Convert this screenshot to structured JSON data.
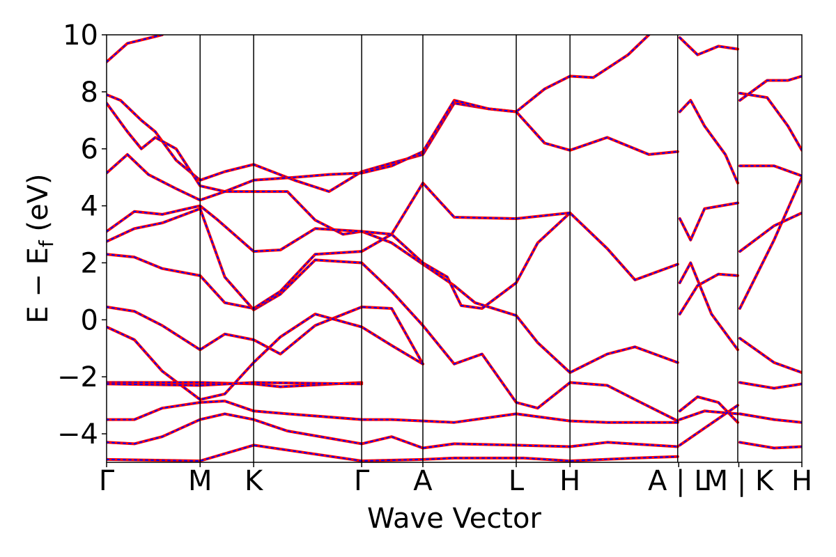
{
  "chart_data": {
    "type": "line",
    "xlabel": "Wave Vector",
    "ylabel": {
      "main": "E − E",
      "subscript": "f",
      "unit": " (eV)"
    },
    "ylim": [
      -5,
      10
    ],
    "yticks": [
      -4,
      -2,
      0,
      2,
      4,
      6,
      8,
      10
    ],
    "ytick_labels": [
      "−4",
      "−2",
      "0",
      "2",
      "4",
      "6",
      "8",
      "10"
    ],
    "x_range": [
      0,
      1
    ],
    "kpoints": [
      {
        "label": "Γ",
        "x": 0.0
      },
      {
        "label": "M",
        "x": 0.1345
      },
      {
        "label": "K",
        "x": 0.2115
      },
      {
        "label": "Γ",
        "x": 0.3669
      },
      {
        "label": "A",
        "x": 0.4549
      },
      {
        "label": "L",
        "x": 0.5892
      },
      {
        "label": "H",
        "x": 0.6665
      },
      {
        "label": "A",
        "x": 0.8214
      },
      {
        "label": "L",
        "x": 0.8244
      },
      {
        "label": "M",
        "x": 0.9078
      },
      {
        "label": "K",
        "x": 0.9108
      },
      {
        "label": "H",
        "x": 1.0
      }
    ],
    "bottom_labels": [
      "Γ",
      "M",
      "K",
      "Γ",
      "A",
      "L",
      "H",
      "A | L",
      "M | K",
      "H"
    ],
    "vlines": [
      0.1345,
      0.2115,
      0.3669,
      0.4549,
      0.5892,
      0.6665,
      0.8214,
      0.9078
    ],
    "grid": false,
    "legend": "none",
    "series_style": [
      {
        "color": "#ff0000",
        "style": "solid"
      },
      {
        "color": "#0000ff",
        "style": "dotted"
      }
    ],
    "bands": [
      [
        [
          0,
          9.05
        ],
        [
          0.03,
          9.7
        ],
        [
          0.08,
          10.0
        ]
      ],
      [
        [
          0,
          7.9
        ],
        [
          0.02,
          7.7
        ],
        [
          0.05,
          7.0
        ],
        [
          0.07,
          6.6
        ],
        [
          0.1,
          5.6
        ],
        [
          0.1345,
          4.9
        ],
        [
          0.17,
          5.2
        ],
        [
          0.2115,
          5.45
        ],
        [
          0.27,
          4.9
        ],
        [
          0.32,
          4.5
        ],
        [
          0.3669,
          5.2
        ],
        [
          0.41,
          5.5
        ],
        [
          0.4549,
          5.8
        ],
        [
          0.5,
          7.6
        ],
        [
          0.55,
          7.4
        ],
        [
          0.5892,
          7.3
        ],
        [
          0.63,
          8.1
        ],
        [
          0.6665,
          8.55
        ],
        [
          0.7,
          8.5
        ],
        [
          0.75,
          9.3
        ],
        [
          0.78,
          10.0
        ]
      ],
      [
        [
          0,
          7.6
        ],
        [
          0.03,
          6.6
        ],
        [
          0.05,
          6.0
        ],
        [
          0.07,
          6.4
        ],
        [
          0.1,
          6.0
        ],
        [
          0.1345,
          4.7
        ],
        [
          0.17,
          4.5
        ],
        [
          0.2115,
          4.9
        ],
        [
          0.27,
          5.0
        ],
        [
          0.32,
          5.1
        ],
        [
          0.3669,
          5.15
        ],
        [
          0.41,
          5.4
        ],
        [
          0.4549,
          5.9
        ],
        [
          0.5,
          7.7
        ],
        [
          0.55,
          7.4
        ],
        [
          0.5892,
          7.3
        ],
        [
          0.63,
          6.2
        ],
        [
          0.6665,
          5.95
        ],
        [
          0.72,
          6.4
        ],
        [
          0.78,
          5.8
        ],
        [
          0.8214,
          5.9
        ]
      ],
      [
        [
          0,
          5.15
        ],
        [
          0.03,
          5.8
        ],
        [
          0.06,
          5.1
        ],
        [
          0.1,
          4.6
        ],
        [
          0.1345,
          4.2
        ],
        [
          0.17,
          4.5
        ],
        [
          0.2115,
          4.5
        ],
        [
          0.26,
          4.5
        ],
        [
          0.3,
          3.5
        ],
        [
          0.34,
          3.0
        ],
        [
          0.3669,
          3.1
        ],
        [
          0.41,
          2.7
        ],
        [
          0.4549,
          1.95
        ],
        [
          0.5,
          1.2
        ],
        [
          0.53,
          0.6
        ],
        [
          0.5892,
          0.15
        ],
        [
          0.62,
          -0.8
        ],
        [
          0.6665,
          -1.85
        ],
        [
          0.72,
          -1.2
        ],
        [
          0.76,
          -0.95
        ],
        [
          0.8214,
          -1.5
        ]
      ],
      [
        [
          0,
          3.1
        ],
        [
          0.04,
          3.8
        ],
        [
          0.08,
          3.7
        ],
        [
          0.1345,
          4.0
        ],
        [
          0.16,
          3.5
        ],
        [
          0.2115,
          2.4
        ],
        [
          0.25,
          2.45
        ],
        [
          0.3,
          3.2
        ],
        [
          0.3669,
          3.1
        ],
        [
          0.41,
          3.0
        ],
        [
          0.4549,
          2.0
        ],
        [
          0.49,
          1.5
        ],
        [
          0.51,
          0.5
        ],
        [
          0.54,
          0.4
        ],
        [
          0.5892,
          1.3
        ],
        [
          0.62,
          2.7
        ],
        [
          0.6665,
          3.75
        ],
        [
          0.72,
          2.5
        ],
        [
          0.76,
          1.4
        ],
        [
          0.8214,
          1.95
        ]
      ],
      [
        [
          0,
          2.75
        ],
        [
          0.04,
          3.2
        ],
        [
          0.08,
          3.4
        ],
        [
          0.1345,
          3.9
        ],
        [
          0.17,
          1.5
        ],
        [
          0.2115,
          0.35
        ],
        [
          0.25,
          0.9
        ],
        [
          0.3,
          2.1
        ],
        [
          0.3669,
          2.0
        ],
        [
          0.41,
          1.0
        ],
        [
          0.4549,
          -0.2
        ],
        [
          0.5,
          -1.55
        ],
        [
          0.54,
          -1.2
        ],
        [
          0.5892,
          -2.9
        ],
        [
          0.62,
          -3.1
        ],
        [
          0.6665,
          -2.2
        ],
        [
          0.72,
          -2.3
        ],
        [
          0.76,
          -2.8
        ],
        [
          0.8214,
          -3.55
        ]
      ],
      [
        [
          0,
          2.3
        ],
        [
          0.04,
          2.2
        ],
        [
          0.08,
          1.8
        ],
        [
          0.1345,
          1.55
        ],
        [
          0.17,
          0.6
        ],
        [
          0.2115,
          0.4
        ],
        [
          0.25,
          1.0
        ],
        [
          0.3,
          2.3
        ],
        [
          0.3669,
          2.4
        ],
        [
          0.41,
          3.0
        ],
        [
          0.4549,
          4.8
        ],
        [
          0.5,
          3.6
        ],
        [
          0.5892,
          3.55
        ],
        [
          0.6665,
          3.75
        ]
      ],
      [
        [
          0,
          0.45
        ],
        [
          0.04,
          0.3
        ],
        [
          0.08,
          -0.2
        ],
        [
          0.1345,
          -1.05
        ],
        [
          0.17,
          -0.5
        ],
        [
          0.2115,
          -0.7
        ],
        [
          0.25,
          -1.2
        ],
        [
          0.3,
          -0.2
        ],
        [
          0.3669,
          0.45
        ],
        [
          0.41,
          0.4
        ],
        [
          0.4549,
          -1.55
        ]
      ],
      [
        [
          0,
          -0.25
        ],
        [
          0.04,
          -0.7
        ],
        [
          0.08,
          -1.8
        ],
        [
          0.1345,
          -2.8
        ],
        [
          0.17,
          -2.6
        ],
        [
          0.2115,
          -1.5
        ],
        [
          0.25,
          -0.6
        ],
        [
          0.3,
          0.2
        ],
        [
          0.3669,
          -0.25
        ],
        [
          0.41,
          -0.9
        ],
        [
          0.4549,
          -1.55
        ]
      ],
      [
        [
          0,
          -2.2
        ],
        [
          0.1345,
          -2.2
        ],
        [
          0.2115,
          -2.25
        ],
        [
          0.25,
          -2.35
        ],
        [
          0.3669,
          -2.2
        ]
      ],
      [
        [
          0,
          -2.25
        ],
        [
          0.1345,
          -2.3
        ],
        [
          0.2115,
          -2.2
        ],
        [
          0.3669,
          -2.25
        ]
      ],
      [
        [
          0,
          -3.5
        ],
        [
          0.04,
          -3.5
        ],
        [
          0.08,
          -3.1
        ],
        [
          0.1345,
          -2.9
        ],
        [
          0.17,
          -2.85
        ],
        [
          0.2115,
          -3.2
        ],
        [
          0.26,
          -3.3
        ],
        [
          0.3669,
          -3.5
        ],
        [
          0.41,
          -3.5
        ],
        [
          0.4549,
          -3.55
        ],
        [
          0.5,
          -3.6
        ],
        [
          0.5892,
          -3.3
        ],
        [
          0.6665,
          -3.55
        ],
        [
          0.72,
          -3.6
        ],
        [
          0.8214,
          -3.6
        ]
      ],
      [
        [
          0,
          -4.3
        ],
        [
          0.04,
          -4.35
        ],
        [
          0.08,
          -4.1
        ],
        [
          0.1345,
          -3.5
        ],
        [
          0.17,
          -3.3
        ],
        [
          0.2115,
          -3.5
        ],
        [
          0.26,
          -3.9
        ],
        [
          0.3669,
          -4.35
        ],
        [
          0.41,
          -4.1
        ],
        [
          0.4549,
          -4.5
        ],
        [
          0.5,
          -4.35
        ],
        [
          0.5892,
          -4.4
        ],
        [
          0.6665,
          -4.45
        ],
        [
          0.72,
          -4.3
        ],
        [
          0.8214,
          -4.45
        ]
      ],
      [
        [
          0,
          -4.9
        ],
        [
          0.1345,
          -4.95
        ],
        [
          0.2115,
          -4.4
        ],
        [
          0.3669,
          -4.95
        ],
        [
          0.4549,
          -4.9
        ],
        [
          0.5,
          -4.85
        ],
        [
          0.6,
          -4.85
        ],
        [
          0.6665,
          -4.95
        ],
        [
          0.76,
          -4.85
        ],
        [
          0.8214,
          -4.8
        ]
      ],
      [
        [
          0.8244,
          9.9
        ],
        [
          0.85,
          9.3
        ],
        [
          0.88,
          9.6
        ],
        [
          0.9078,
          9.5
        ]
      ],
      [
        [
          0.8244,
          7.3
        ],
        [
          0.84,
          7.7
        ],
        [
          0.86,
          6.8
        ],
        [
          0.89,
          5.8
        ],
        [
          0.9078,
          4.8
        ]
      ],
      [
        [
          0.8244,
          3.55
        ],
        [
          0.84,
          2.8
        ],
        [
          0.86,
          3.9
        ],
        [
          0.9078,
          4.1
        ]
      ],
      [
        [
          0.8244,
          1.3
        ],
        [
          0.84,
          2.0
        ],
        [
          0.87,
          0.2
        ],
        [
          0.9078,
          -1.05
        ]
      ],
      [
        [
          0.8244,
          0.2
        ],
        [
          0.85,
          1.2
        ],
        [
          0.88,
          1.6
        ],
        [
          0.9078,
          1.55
        ]
      ],
      [
        [
          0.8244,
          -3.2
        ],
        [
          0.85,
          -2.7
        ],
        [
          0.88,
          -2.9
        ],
        [
          0.9078,
          -3.6
        ]
      ],
      [
        [
          0.8244,
          -3.5
        ],
        [
          0.86,
          -3.2
        ],
        [
          0.9078,
          -3.3
        ]
      ],
      [
        [
          0.8244,
          -4.4
        ],
        [
          0.86,
          -3.8
        ],
        [
          0.9078,
          -3.0
        ]
      ],
      [
        [
          0.9108,
          7.95
        ],
        [
          0.95,
          7.8
        ],
        [
          0.98,
          6.8
        ],
        [
          1.0,
          5.95
        ]
      ],
      [
        [
          0.9108,
          7.7
        ],
        [
          0.95,
          8.4
        ],
        [
          0.98,
          8.4
        ],
        [
          1.0,
          8.55
        ]
      ],
      [
        [
          0.9108,
          5.4
        ],
        [
          0.96,
          5.4
        ],
        [
          1.0,
          5.05
        ]
      ],
      [
        [
          0.9108,
          2.4
        ],
        [
          0.96,
          3.3
        ],
        [
          1.0,
          3.75
        ]
      ],
      [
        [
          0.9108,
          0.4
        ],
        [
          0.96,
          2.8
        ],
        [
          1.0,
          5.0
        ]
      ],
      [
        [
          0.9108,
          -0.65
        ],
        [
          0.96,
          -1.5
        ],
        [
          1.0,
          -1.85
        ]
      ],
      [
        [
          0.9108,
          -2.2
        ],
        [
          0.96,
          -2.4
        ],
        [
          1.0,
          -2.25
        ]
      ],
      [
        [
          0.9108,
          -3.3
        ],
        [
          0.96,
          -3.5
        ],
        [
          1.0,
          -3.6
        ]
      ],
      [
        [
          0.9108,
          -4.3
        ],
        [
          0.96,
          -4.5
        ],
        [
          1.0,
          -4.45
        ]
      ]
    ]
  }
}
